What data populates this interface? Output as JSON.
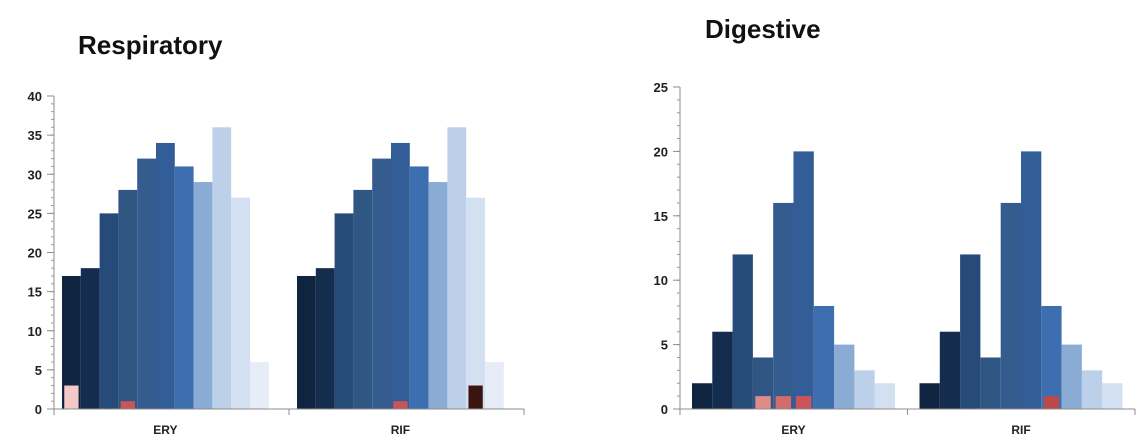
{
  "chart_data": [
    {
      "type": "bar",
      "title": "Respiratory",
      "categories": [
        "ERY",
        "RIF"
      ],
      "ylim": [
        0,
        40
      ],
      "yticks": [
        0,
        5,
        10,
        15,
        20,
        25,
        30,
        35,
        40
      ],
      "grid": false,
      "legend": "none",
      "series": [
        {
          "color": "#0e2440",
          "values": [
            17,
            17
          ]
        },
        {
          "color": "#142c4e",
          "values": [
            18,
            18
          ]
        },
        {
          "color": "#274b78",
          "values": [
            25,
            25
          ]
        },
        {
          "color": "#305684",
          "values": [
            28,
            28
          ]
        },
        {
          "color": "#355c8e",
          "values": [
            32,
            32
          ]
        },
        {
          "color": "#335d97",
          "values": [
            34,
            34
          ]
        },
        {
          "color": "#3d6fb0",
          "values": [
            31,
            31
          ]
        },
        {
          "color": "#8aabd4",
          "values": [
            29,
            29
          ]
        },
        {
          "color": "#bcd0ea",
          "values": [
            36,
            36
          ]
        },
        {
          "color": "#d2e0f1",
          "values": [
            27,
            27
          ]
        },
        {
          "color": "#e6edf7",
          "values": [
            6,
            6
          ]
        }
      ],
      "overlays": [
        {
          "category": "ERY",
          "bar": 0,
          "value": 3,
          "color": "#f6c9c9"
        },
        {
          "category": "ERY",
          "bar": 3,
          "value": 1,
          "color": "#c9545a"
        },
        {
          "category": "RIF",
          "bar": 5,
          "value": 1,
          "color": "#c9545a"
        },
        {
          "category": "RIF",
          "bar": 9,
          "value": 3,
          "color": "#3a140f"
        }
      ]
    },
    {
      "type": "bar",
      "title": "Digestive",
      "categories": [
        "ERY",
        "RIF"
      ],
      "ylim": [
        0,
        25
      ],
      "yticks": [
        0,
        5,
        10,
        15,
        20,
        25
      ],
      "grid": false,
      "legend": "none",
      "series": [
        {
          "color": "#0e2440",
          "values": [
            2,
            2
          ]
        },
        {
          "color": "#142c4e",
          "values": [
            6,
            6
          ]
        },
        {
          "color": "#274b78",
          "values": [
            12,
            12
          ]
        },
        {
          "color": "#305684",
          "values": [
            4,
            4
          ]
        },
        {
          "color": "#355c8e",
          "values": [
            16,
            16
          ]
        },
        {
          "color": "#335d97",
          "values": [
            20,
            20
          ]
        },
        {
          "color": "#3d6fb0",
          "values": [
            8,
            8
          ]
        },
        {
          "color": "#8aabd4",
          "values": [
            5,
            5
          ]
        },
        {
          "color": "#bcd0ea",
          "values": [
            3,
            3
          ]
        },
        {
          "color": "#d2e0f1",
          "values": [
            2,
            2
          ]
        }
      ],
      "overlays": [
        {
          "category": "ERY",
          "bar": 3,
          "value": 1,
          "color": "#e08a8a"
        },
        {
          "category": "ERY",
          "bar": 4,
          "value": 1,
          "color": "#d26b6b"
        },
        {
          "category": "ERY",
          "bar": 5,
          "value": 1,
          "color": "#c9545a"
        },
        {
          "category": "RIF",
          "bar": 6,
          "value": 1,
          "color": "#b84a4a"
        }
      ]
    }
  ]
}
